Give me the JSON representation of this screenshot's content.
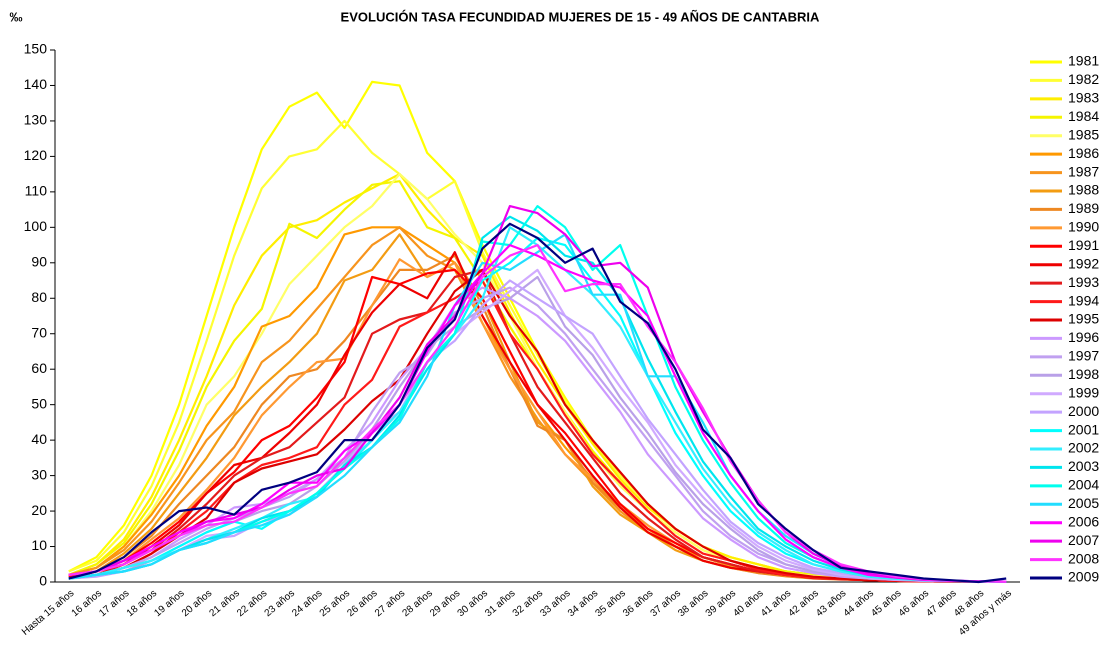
{
  "chart_data": {
    "type": "line",
    "title": "EVOLUCIÓN TASA FECUNDIDAD MUJERES DE 15 - 49 AÑOS DE CANTABRIA",
    "y_label": "‰",
    "categories": [
      "Hasta 15 años",
      "16 años",
      "17 años",
      "18 años",
      "19 años",
      "20 años",
      "21 años",
      "22 años",
      "23 años",
      "24 años",
      "25 años",
      "26 años",
      "27 años",
      "28 años",
      "29 años",
      "30 años",
      "31 años",
      "32 años",
      "33 años",
      "34 años",
      "35 años",
      "36 años",
      "37 años",
      "38 años",
      "39 años",
      "40 años",
      "41 años",
      "42 años",
      "43 años",
      "44 años",
      "45 años",
      "46 años",
      "47 años",
      "48 años",
      "49 años y más"
    ],
    "ylim": [
      0,
      150
    ],
    "yticks": [
      0,
      10,
      20,
      30,
      40,
      50,
      60,
      70,
      80,
      90,
      100,
      110,
      120,
      130,
      140,
      150
    ],
    "series": [
      {
        "name": "1981",
        "color": "#ffff00",
        "values": [
          3,
          7,
          16,
          30,
          50,
          75,
          100,
          122,
          134,
          138,
          128,
          141,
          140,
          121,
          113,
          95,
          80,
          65,
          52,
          40,
          30,
          22,
          15,
          10,
          7,
          5,
          3,
          2,
          1.5,
          1,
          0.7,
          0.4,
          0.2,
          0.1,
          0.1
        ]
      },
      {
        "name": "1982",
        "color": "#ffff33",
        "values": [
          3,
          6,
          14,
          27,
          45,
          68,
          92,
          111,
          120,
          122,
          130,
          121,
          115,
          108,
          113,
          93,
          78,
          64,
          51,
          40,
          30,
          22,
          15,
          10,
          7,
          5,
          3,
          2,
          1.5,
          1,
          0.6,
          0.4,
          0.2,
          0.1,
          0.1
        ]
      },
      {
        "name": "1983",
        "color": "#ffee00",
        "values": [
          2,
          5,
          12,
          24,
          40,
          58,
          78,
          92,
          100,
          102,
          107,
          111,
          115,
          105,
          97,
          92,
          76,
          62,
          50,
          39,
          29,
          21,
          15,
          10,
          7,
          5,
          3,
          2,
          1.5,
          1,
          0.6,
          0.4,
          0.2,
          0.1,
          0.1
        ]
      },
      {
        "name": "1984",
        "color": "#f5f500",
        "values": [
          2,
          5,
          11,
          22,
          37,
          55,
          68,
          77,
          101,
          97,
          105,
          112,
          113,
          100,
          97,
          85,
          72,
          60,
          48,
          37,
          28,
          20,
          14,
          9,
          6,
          4,
          3,
          2,
          1.2,
          0.8,
          0.5,
          0.3,
          0.2,
          0.1,
          0.1
        ]
      },
      {
        "name": "1985",
        "color": "#ffff66",
        "values": [
          2,
          4,
          10,
          20,
          33,
          50,
          58,
          70,
          84,
          92,
          100,
          106,
          115,
          108,
          98,
          90,
          75,
          60,
          48,
          36,
          27,
          20,
          14,
          9,
          6,
          4,
          2.5,
          1.7,
          1.1,
          0.7,
          0.5,
          0.3,
          0.2,
          0.1,
          0.1
        ]
      },
      {
        "name": "1986",
        "color": "#ff9900",
        "values": [
          2,
          4,
          10,
          19,
          30,
          44,
          55,
          72,
          75,
          83,
          98,
          100,
          100,
          95,
          90,
          75,
          60,
          48,
          38,
          29,
          21,
          15,
          10,
          7,
          5,
          3,
          2,
          1.3,
          0.9,
          0.6,
          0.4,
          0.3,
          0.2,
          0.1,
          0.1
        ]
      },
      {
        "name": "1987",
        "color": "#f7941d",
        "values": [
          2,
          4,
          9,
          17,
          28,
          40,
          48,
          62,
          68,
          77,
          86,
          95,
          100,
          92,
          88,
          73,
          58,
          46,
          36,
          28,
          20,
          14,
          10,
          7,
          4.5,
          3,
          2,
          1.3,
          0.9,
          0.6,
          0.4,
          0.3,
          0.2,
          0.1,
          0.1
        ]
      },
      {
        "name": "1988",
        "color": "#f39c12",
        "values": [
          1.5,
          3,
          8,
          15,
          25,
          35,
          47,
          55,
          62,
          70,
          85,
          88,
          98,
          86,
          90,
          80,
          62,
          45,
          40,
          27,
          19,
          14,
          9,
          6,
          4,
          2.6,
          1.7,
          1.1,
          0.8,
          0.5,
          0.3,
          0.2,
          0.1,
          0.1,
          0.1
        ]
      },
      {
        "name": "1989",
        "color": "#ee8822",
        "values": [
          1.5,
          3,
          7,
          13,
          22,
          30,
          38,
          50,
          58,
          60,
          68,
          78,
          88,
          88,
          92,
          78,
          60,
          44,
          40,
          28,
          21,
          15,
          10,
          6,
          4,
          2.5,
          1.6,
          1,
          0.7,
          0.5,
          0.3,
          0.2,
          0.1,
          0.1,
          0.1
        ]
      },
      {
        "name": "1990",
        "color": "#ff9933",
        "values": [
          1.5,
          3,
          6,
          12,
          18,
          26,
          35,
          47,
          55,
          62,
          63,
          78,
          91,
          86,
          90,
          73,
          60,
          48,
          36,
          29,
          22,
          16,
          11,
          7,
          5,
          3,
          2,
          1.2,
          0.8,
          0.5,
          0.3,
          0.2,
          0.1,
          0.1,
          0.1
        ]
      },
      {
        "name": "1991",
        "color": "#ff0000",
        "values": [
          1.5,
          3,
          6,
          11,
          17,
          25,
          31,
          40,
          44,
          52,
          62,
          86,
          84,
          87,
          88,
          80,
          65,
          50,
          42,
          32,
          22,
          15,
          11,
          7,
          5,
          3,
          2,
          1.2,
          0.8,
          0.5,
          0.3,
          0.2,
          0.1,
          0.1,
          0.1
        ]
      },
      {
        "name": "1992",
        "color": "#ee0000",
        "values": [
          1,
          3,
          5,
          10,
          16,
          25,
          33,
          35,
          42,
          50,
          64,
          76,
          84,
          80,
          93,
          75,
          62,
          50,
          40,
          30,
          21,
          14,
          10,
          6,
          4,
          3,
          2,
          1.1,
          0.8,
          0.5,
          0.3,
          0.2,
          0.1,
          0.1,
          0.1
        ]
      },
      {
        "name": "1993",
        "color": "#e31a1c",
        "values": [
          1,
          2,
          5,
          9,
          15,
          22,
          30,
          35,
          38,
          45,
          52,
          70,
          74,
          76,
          86,
          88,
          70,
          55,
          45,
          35,
          25,
          18,
          12,
          7,
          5,
          3,
          2,
          1.2,
          0.8,
          0.5,
          0.3,
          0.2,
          0.1,
          0.1,
          0.1
        ]
      },
      {
        "name": "1994",
        "color": "#ff1a1a",
        "values": [
          1,
          2,
          4,
          8,
          14,
          20,
          28,
          33,
          35,
          38,
          50,
          57,
          72,
          76,
          80,
          85,
          70,
          60,
          47,
          36,
          28,
          20,
          13,
          8,
          6,
          3.5,
          2,
          1.3,
          0.9,
          0.5,
          0.3,
          0.2,
          0.1,
          0.1,
          0.1
        ]
      },
      {
        "name": "1995",
        "color": "#dd0000",
        "values": [
          1,
          2,
          4,
          8,
          13,
          18,
          28,
          32,
          34,
          36,
          43,
          51,
          57,
          70,
          82,
          88,
          75,
          65,
          50,
          40,
          31,
          22,
          15,
          10,
          6,
          4,
          2.5,
          1.5,
          1,
          0.6,
          0.4,
          0.2,
          0.1,
          0.1,
          0.1
        ]
      },
      {
        "name": "1996",
        "color": "#cc99ff",
        "values": [
          1,
          2,
          4,
          7,
          12,
          16,
          21,
          22,
          25,
          29,
          37,
          45,
          57,
          66,
          78,
          83,
          80,
          75,
          68,
          58,
          48,
          36,
          27,
          18,
          12,
          7,
          4,
          2.5,
          1.5,
          1,
          0.6,
          0.3,
          0.2,
          0.1,
          0.1
        ]
      },
      {
        "name": "1997",
        "color": "#c0a0f0",
        "values": [
          1,
          2,
          4,
          7,
          11,
          15,
          18,
          21,
          24,
          29,
          35,
          48,
          59,
          64,
          76,
          80,
          83,
          78,
          70,
          60,
          50,
          40,
          30,
          20,
          13,
          8,
          5,
          3,
          1.8,
          1,
          0.6,
          0.4,
          0.2,
          0.1,
          0.1
        ]
      },
      {
        "name": "1998",
        "color": "#b9a0e8",
        "values": [
          1,
          2,
          3,
          6,
          10,
          14,
          17,
          20,
          22,
          27,
          34,
          43,
          55,
          66,
          72,
          77,
          80,
          86,
          72,
          64,
          52,
          42,
          31,
          22,
          15,
          9,
          5,
          3,
          2,
          1.2,
          0.7,
          0.4,
          0.2,
          0.1,
          0.1
        ]
      },
      {
        "name": "1999",
        "color": "#d0aaff",
        "values": [
          1,
          2,
          3,
          5,
          9,
          13,
          14,
          18,
          20,
          25,
          32,
          40,
          50,
          62,
          70,
          76,
          82,
          88,
          75,
          66,
          55,
          45,
          33,
          24,
          16,
          10,
          6,
          3.5,
          2,
          1.2,
          0.7,
          0.4,
          0.2,
          0.1,
          0.1
        ]
      },
      {
        "name": "2000",
        "color": "#c3a3ff",
        "values": [
          1,
          1.5,
          3,
          5,
          9,
          12,
          13,
          17,
          19,
          25,
          33,
          42,
          48,
          62,
          68,
          78,
          85,
          80,
          75,
          70,
          58,
          46,
          36,
          26,
          17,
          11,
          7,
          4,
          2.5,
          1.4,
          0.8,
          0.5,
          0.3,
          0.1,
          0.1
        ]
      },
      {
        "name": "2001",
        "color": "#00ffff",
        "values": [
          1,
          2,
          4,
          6,
          10,
          14,
          17,
          15,
          20,
          25,
          32,
          40,
          50,
          62,
          70,
          85,
          90,
          97,
          95,
          85,
          75,
          58,
          42,
          30,
          20,
          13,
          8,
          5,
          3,
          1.5,
          0.9,
          0.5,
          0.3,
          0.2,
          0.1
        ]
      },
      {
        "name": "2002",
        "color": "#33eeff",
        "values": [
          1,
          2,
          4,
          6,
          9,
          12,
          15,
          18,
          22,
          24,
          33,
          40,
          48,
          60,
          70,
          80,
          100,
          95,
          88,
          81,
          72,
          58,
          45,
          32,
          22,
          14,
          9,
          5,
          3,
          1.6,
          1,
          0.5,
          0.3,
          0.2,
          0.1
        ]
      },
      {
        "name": "2003",
        "color": "#00e5ee",
        "values": [
          1,
          2,
          3,
          5,
          9,
          12,
          14,
          18,
          20,
          24,
          33,
          38,
          47,
          60,
          70,
          97,
          103,
          99,
          92,
          90,
          80,
          63,
          48,
          34,
          24,
          15,
          10,
          6,
          3.5,
          2,
          1.2,
          0.6,
          0.3,
          0.2,
          0.1
        ]
      },
      {
        "name": "2004",
        "color": "#00ffee",
        "values": [
          1,
          2,
          3,
          5,
          9,
          11,
          14,
          17,
          20,
          25,
          32,
          38,
          46,
          62,
          70,
          96,
          95,
          106,
          100,
          88,
          95,
          75,
          55,
          40,
          28,
          18,
          11,
          7,
          4,
          2.2,
          1.2,
          0.6,
          0.3,
          0.2,
          0.1
        ]
      },
      {
        "name": "2005",
        "color": "#22ddff",
        "values": [
          1,
          2,
          3,
          5,
          9,
          11,
          14,
          16,
          19,
          24,
          30,
          38,
          45,
          58,
          78,
          90,
          88,
          93,
          98,
          81,
          81,
          58,
          58,
          45,
          30,
          20,
          13,
          8,
          4.5,
          2.5,
          1.3,
          0.7,
          0.4,
          0.2,
          0.1
        ]
      },
      {
        "name": "2006",
        "color": "#ff00ff",
        "values": [
          2,
          3,
          6,
          10,
          14,
          17,
          18,
          22,
          28,
          28,
          37,
          42,
          50,
          65,
          78,
          87,
          95,
          92,
          88,
          85,
          83,
          75,
          58,
          42,
          30,
          20,
          12,
          7,
          4,
          2,
          1.2,
          0.6,
          0.3,
          0.2,
          0.1
        ]
      },
      {
        "name": "2007",
        "color": "#ee00ee",
        "values": [
          2,
          3,
          6,
          9,
          13,
          17,
          19,
          21,
          26,
          30,
          32,
          42,
          52,
          67,
          75,
          87,
          106,
          104,
          98,
          89,
          90,
          83,
          62,
          48,
          35,
          23,
          14,
          8,
          4.5,
          2.5,
          1.3,
          0.7,
          0.4,
          0.2,
          0.1
        ]
      },
      {
        "name": "2008",
        "color": "#ff33ff",
        "values": [
          2,
          3,
          5,
          9,
          13,
          16,
          17,
          21,
          25,
          27,
          35,
          43,
          50,
          62,
          72,
          86,
          92,
          95,
          82,
          84,
          84,
          72,
          62,
          49,
          34,
          23,
          14,
          9,
          5,
          3,
          1.5,
          0.8,
          0.4,
          0.2,
          0.1
        ]
      },
      {
        "name": "2009",
        "color": "#000080",
        "values": [
          1,
          3,
          7,
          14,
          20,
          21,
          19,
          26,
          28,
          31,
          40,
          40,
          50,
          66,
          74,
          94,
          101,
          97,
          90,
          94,
          79,
          73,
          60,
          43,
          35,
          22,
          15,
          9,
          4,
          3,
          2,
          1,
          0.5,
          0,
          1
        ]
      }
    ]
  }
}
